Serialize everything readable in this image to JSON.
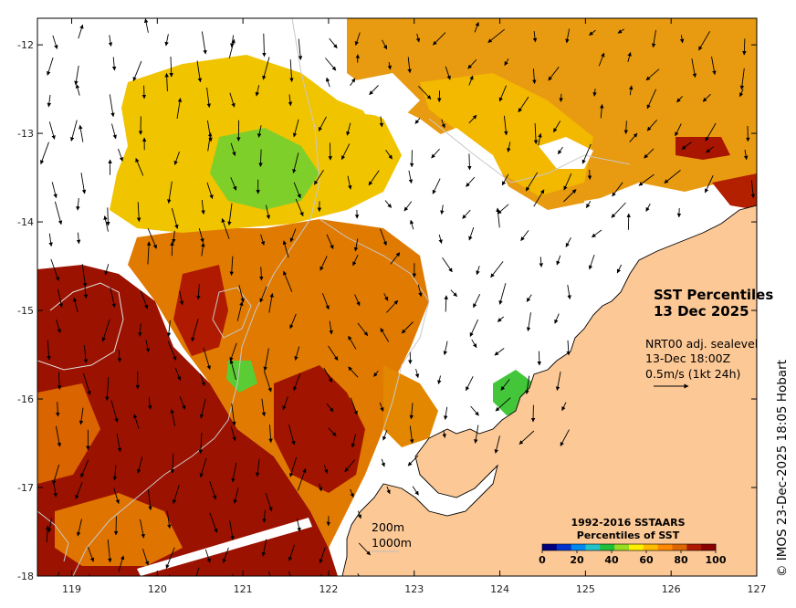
{
  "map": {
    "title": "SST Percentiles",
    "date": "13 Dec 2025",
    "current_product": "NRT00 adj. sealevel",
    "current_time": "13-Dec 18:00Z",
    "current_scale": "0.5m/s (1kt 24h)",
    "contour_labels": [
      "200m",
      "1000m"
    ],
    "credit": "© IMOS 23-Dec-2025 18:05 Hobart",
    "lon_ticks": [
      "119",
      "120",
      "121",
      "122",
      "123",
      "124",
      "125",
      "126",
      "127"
    ],
    "lat_ticks": [
      "-12",
      "-13",
      "-14",
      "-15",
      "-16",
      "-17",
      "-18"
    ],
    "extent": {
      "lon": [
        118.6,
        127.0
      ],
      "lat": [
        -18.0,
        -11.7
      ]
    },
    "land_color": "#fcc896"
  },
  "legend": {
    "title_line1": "1992-2016 SSTAARS",
    "title_line2": "Percentiles of SST",
    "ticks": [
      "0",
      "20",
      "40",
      "60",
      "80",
      "100"
    ],
    "colors": [
      "#00007f",
      "#0033cc",
      "#0088ee",
      "#22c2c8",
      "#1fbf3a",
      "#99dd22",
      "#ffee00",
      "#ffbb00",
      "#ff8800",
      "#dd6600",
      "#b01a00",
      "#8b0000"
    ]
  }
}
